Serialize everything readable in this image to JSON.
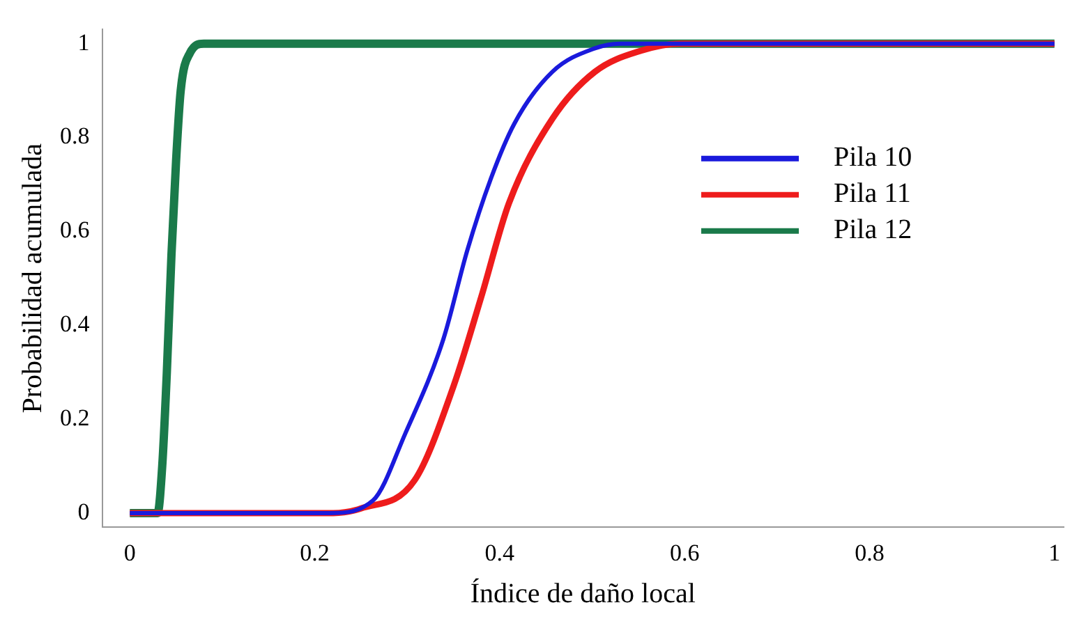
{
  "chart_data": {
    "type": "line",
    "xlabel": "Índice de daño local",
    "ylabel": "Probabilidad acumulada",
    "xlim": [
      -0.03,
      1.01
    ],
    "ylim": [
      -0.03,
      1.03
    ],
    "xticks": [
      0,
      0.2,
      0.4,
      0.6,
      0.8,
      1
    ],
    "yticks": [
      0,
      0.2,
      0.4,
      0.6,
      0.8,
      1
    ],
    "grid": false,
    "legend": "right",
    "marker": "none",
    "line_style": "solid",
    "series": [
      {
        "name": "Pila 10",
        "color": "#1a1adc",
        "x": [
          0,
          0.216,
          0.263,
          0.298,
          0.339,
          0.365,
          0.39,
          0.416,
          0.457,
          0.503,
          0.53,
          1
        ],
        "values": [
          0,
          0,
          0.027,
          0.17,
          0.37,
          0.56,
          0.71,
          0.83,
          0.94,
          0.99,
          1,
          1
        ]
      },
      {
        "name": "Pila 11",
        "color": "#ee1c1c",
        "x": [
          0,
          0.22,
          0.25,
          0.308,
          0.35,
          0.38,
          0.41,
          0.457,
          0.503,
          0.553,
          0.595,
          1
        ],
        "values": [
          0,
          0,
          0.01,
          0.07,
          0.27,
          0.46,
          0.66,
          0.84,
          0.94,
          0.985,
          1,
          1
        ]
      },
      {
        "name": "Pila 12",
        "color": "#1a7a4a",
        "x": [
          0,
          0.03,
          0.035,
          0.04,
          0.045,
          0.05,
          0.055,
          0.065,
          0.08,
          1
        ],
        "values": [
          0,
          0,
          0.1,
          0.3,
          0.55,
          0.75,
          0.9,
          0.98,
          1,
          1
        ]
      }
    ]
  }
}
